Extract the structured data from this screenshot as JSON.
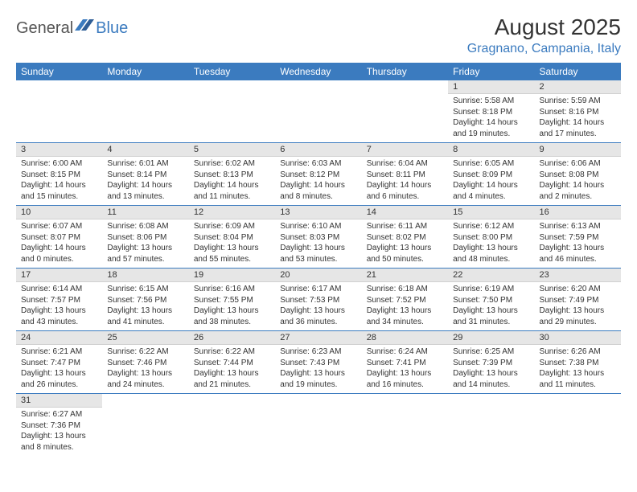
{
  "brand": {
    "part1": "General",
    "part2": "Blue"
  },
  "title": "August 2025",
  "location": "Gragnano, Campania, Italy",
  "colors": {
    "accent": "#3b7bbf",
    "header_row_bg": "#e6e6e6",
    "text": "#333333",
    "bg": "#ffffff"
  },
  "weekday_labels": [
    "Sunday",
    "Monday",
    "Tuesday",
    "Wednesday",
    "Thursday",
    "Friday",
    "Saturday"
  ],
  "weeks": [
    [
      {
        "day": "",
        "lines": []
      },
      {
        "day": "",
        "lines": []
      },
      {
        "day": "",
        "lines": []
      },
      {
        "day": "",
        "lines": []
      },
      {
        "day": "",
        "lines": []
      },
      {
        "day": "1",
        "lines": [
          "Sunrise: 5:58 AM",
          "Sunset: 8:18 PM",
          "Daylight: 14 hours and 19 minutes."
        ]
      },
      {
        "day": "2",
        "lines": [
          "Sunrise: 5:59 AM",
          "Sunset: 8:16 PM",
          "Daylight: 14 hours and 17 minutes."
        ]
      }
    ],
    [
      {
        "day": "3",
        "lines": [
          "Sunrise: 6:00 AM",
          "Sunset: 8:15 PM",
          "Daylight: 14 hours and 15 minutes."
        ]
      },
      {
        "day": "4",
        "lines": [
          "Sunrise: 6:01 AM",
          "Sunset: 8:14 PM",
          "Daylight: 14 hours and 13 minutes."
        ]
      },
      {
        "day": "5",
        "lines": [
          "Sunrise: 6:02 AM",
          "Sunset: 8:13 PM",
          "Daylight: 14 hours and 11 minutes."
        ]
      },
      {
        "day": "6",
        "lines": [
          "Sunrise: 6:03 AM",
          "Sunset: 8:12 PM",
          "Daylight: 14 hours and 8 minutes."
        ]
      },
      {
        "day": "7",
        "lines": [
          "Sunrise: 6:04 AM",
          "Sunset: 8:11 PM",
          "Daylight: 14 hours and 6 minutes."
        ]
      },
      {
        "day": "8",
        "lines": [
          "Sunrise: 6:05 AM",
          "Sunset: 8:09 PM",
          "Daylight: 14 hours and 4 minutes."
        ]
      },
      {
        "day": "9",
        "lines": [
          "Sunrise: 6:06 AM",
          "Sunset: 8:08 PM",
          "Daylight: 14 hours and 2 minutes."
        ]
      }
    ],
    [
      {
        "day": "10",
        "lines": [
          "Sunrise: 6:07 AM",
          "Sunset: 8:07 PM",
          "Daylight: 14 hours and 0 minutes."
        ]
      },
      {
        "day": "11",
        "lines": [
          "Sunrise: 6:08 AM",
          "Sunset: 8:06 PM",
          "Daylight: 13 hours and 57 minutes."
        ]
      },
      {
        "day": "12",
        "lines": [
          "Sunrise: 6:09 AM",
          "Sunset: 8:04 PM",
          "Daylight: 13 hours and 55 minutes."
        ]
      },
      {
        "day": "13",
        "lines": [
          "Sunrise: 6:10 AM",
          "Sunset: 8:03 PM",
          "Daylight: 13 hours and 53 minutes."
        ]
      },
      {
        "day": "14",
        "lines": [
          "Sunrise: 6:11 AM",
          "Sunset: 8:02 PM",
          "Daylight: 13 hours and 50 minutes."
        ]
      },
      {
        "day": "15",
        "lines": [
          "Sunrise: 6:12 AM",
          "Sunset: 8:00 PM",
          "Daylight: 13 hours and 48 minutes."
        ]
      },
      {
        "day": "16",
        "lines": [
          "Sunrise: 6:13 AM",
          "Sunset: 7:59 PM",
          "Daylight: 13 hours and 46 minutes."
        ]
      }
    ],
    [
      {
        "day": "17",
        "lines": [
          "Sunrise: 6:14 AM",
          "Sunset: 7:57 PM",
          "Daylight: 13 hours and 43 minutes."
        ]
      },
      {
        "day": "18",
        "lines": [
          "Sunrise: 6:15 AM",
          "Sunset: 7:56 PM",
          "Daylight: 13 hours and 41 minutes."
        ]
      },
      {
        "day": "19",
        "lines": [
          "Sunrise: 6:16 AM",
          "Sunset: 7:55 PM",
          "Daylight: 13 hours and 38 minutes."
        ]
      },
      {
        "day": "20",
        "lines": [
          "Sunrise: 6:17 AM",
          "Sunset: 7:53 PM",
          "Daylight: 13 hours and 36 minutes."
        ]
      },
      {
        "day": "21",
        "lines": [
          "Sunrise: 6:18 AM",
          "Sunset: 7:52 PM",
          "Daylight: 13 hours and 34 minutes."
        ]
      },
      {
        "day": "22",
        "lines": [
          "Sunrise: 6:19 AM",
          "Sunset: 7:50 PM",
          "Daylight: 13 hours and 31 minutes."
        ]
      },
      {
        "day": "23",
        "lines": [
          "Sunrise: 6:20 AM",
          "Sunset: 7:49 PM",
          "Daylight: 13 hours and 29 minutes."
        ]
      }
    ],
    [
      {
        "day": "24",
        "lines": [
          "Sunrise: 6:21 AM",
          "Sunset: 7:47 PM",
          "Daylight: 13 hours and 26 minutes."
        ]
      },
      {
        "day": "25",
        "lines": [
          "Sunrise: 6:22 AM",
          "Sunset: 7:46 PM",
          "Daylight: 13 hours and 24 minutes."
        ]
      },
      {
        "day": "26",
        "lines": [
          "Sunrise: 6:22 AM",
          "Sunset: 7:44 PM",
          "Daylight: 13 hours and 21 minutes."
        ]
      },
      {
        "day": "27",
        "lines": [
          "Sunrise: 6:23 AM",
          "Sunset: 7:43 PM",
          "Daylight: 13 hours and 19 minutes."
        ]
      },
      {
        "day": "28",
        "lines": [
          "Sunrise: 6:24 AM",
          "Sunset: 7:41 PM",
          "Daylight: 13 hours and 16 minutes."
        ]
      },
      {
        "day": "29",
        "lines": [
          "Sunrise: 6:25 AM",
          "Sunset: 7:39 PM",
          "Daylight: 13 hours and 14 minutes."
        ]
      },
      {
        "day": "30",
        "lines": [
          "Sunrise: 6:26 AM",
          "Sunset: 7:38 PM",
          "Daylight: 13 hours and 11 minutes."
        ]
      }
    ],
    [
      {
        "day": "31",
        "lines": [
          "Sunrise: 6:27 AM",
          "Sunset: 7:36 PM",
          "Daylight: 13 hours and 8 minutes."
        ]
      },
      {
        "day": "",
        "lines": []
      },
      {
        "day": "",
        "lines": []
      },
      {
        "day": "",
        "lines": []
      },
      {
        "day": "",
        "lines": []
      },
      {
        "day": "",
        "lines": []
      },
      {
        "day": "",
        "lines": []
      }
    ]
  ]
}
